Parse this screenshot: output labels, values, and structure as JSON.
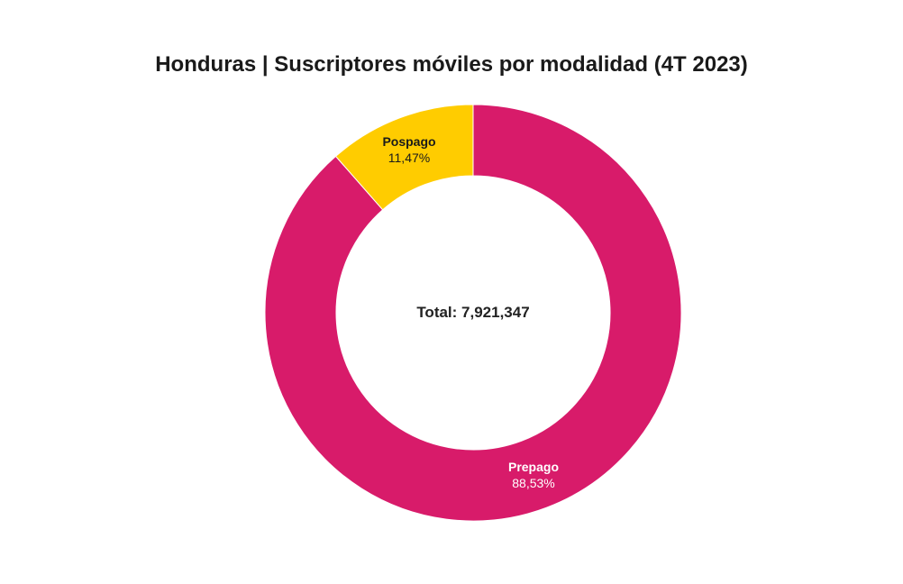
{
  "title": "Honduras | Suscriptores móviles por modalidad (4T 2023)",
  "center_label": "Total: 7,921,347",
  "colors": {
    "prepago": "#d81b6a",
    "pospago": "#ffcc00",
    "label_on_dark": "#ffffff",
    "label_on_light": "#1a1a1a"
  },
  "chart_data": {
    "type": "pie",
    "donut": true,
    "title": "Honduras | Suscriptores móviles por modalidad (4T 2023)",
    "center_text": "Total: 7,921,347",
    "total": 7921347,
    "slices": [
      {
        "label": "Prepago",
        "value": 88.53,
        "value_label": "88,53%",
        "color": "#d81b6a"
      },
      {
        "label": "Pospago",
        "value": 11.47,
        "value_label": "11,47%",
        "color": "#ffcc00"
      }
    ]
  }
}
